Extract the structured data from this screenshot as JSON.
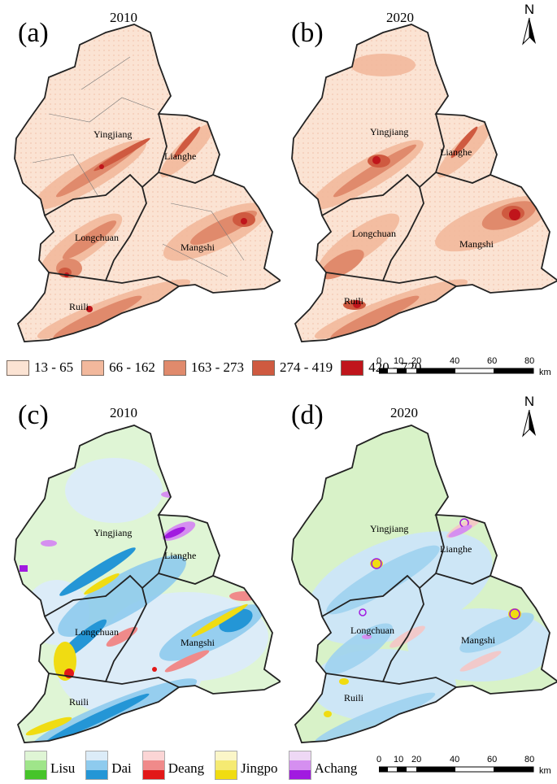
{
  "panels": [
    {
      "label": "(a)",
      "year": "2010"
    },
    {
      "label": "(b)",
      "year": "2020"
    },
    {
      "label": "(c)",
      "year": "2010"
    },
    {
      "label": "(d)",
      "year": "2020"
    }
  ],
  "regions": [
    "Yingjiang",
    "Lianghe",
    "Longchuan",
    "Mangshi",
    "Ruili"
  ],
  "north_label": "N",
  "density_legend": [
    {
      "label": "13 - 65",
      "color": "#fbe3d3"
    },
    {
      "label": "66 - 162",
      "color": "#f2b89c"
    },
    {
      "label": "163 - 273",
      "color": "#e08a6c"
    },
    {
      "label": "274 - 419",
      "color": "#cf5a40"
    },
    {
      "label": "420 - 720",
      "color": "#c0151b"
    }
  ],
  "scale": {
    "ticks": [
      "0",
      "10",
      "20",
      "40",
      "60",
      "80"
    ],
    "unit": "km"
  },
  "ethnic_legend": [
    {
      "label": "Lisu",
      "colors": [
        "#dff5d5",
        "#9fe58a",
        "#46c42a"
      ]
    },
    {
      "label": "Dai",
      "colors": [
        "#dcecf8",
        "#8ecbee",
        "#2496d6"
      ]
    },
    {
      "label": "Deang",
      "colors": [
        "#fbd5d5",
        "#f08a8a",
        "#e21818"
      ]
    },
    {
      "label": "Jingpo",
      "colors": [
        "#fbf6c8",
        "#f5ea72",
        "#f0dc12"
      ]
    },
    {
      "label": "Achang",
      "colors": [
        "#eed8f5",
        "#d58ff0",
        "#a11ae0"
      ]
    }
  ]
}
